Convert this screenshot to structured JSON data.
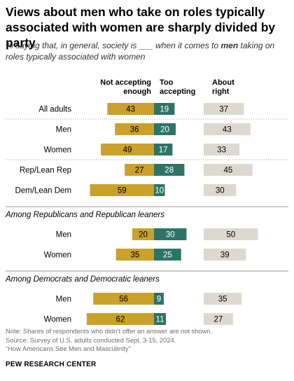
{
  "title": "Views about men who take on roles typically associated with women are sharply divided by party",
  "subtitle_before": "% saying that, in general, society is ___ when it comes to ",
  "subtitle_em": "men",
  "subtitle_after": " taking on roles typically associated with women",
  "footer": {
    "note": "Note: Shares of respondents who didn’t offer an answer are not shown.",
    "source": "Source: Survey of U.S. adults conducted Sept. 3-15, 2024.",
    "report": "“How Americans See Men and Masculinity”"
  },
  "brand": "PEW RESEARCH CENTER",
  "colors": {
    "not_accepting": "#c9a12b",
    "too_accepting": "#2e7466",
    "about_right": "#dcdad0",
    "divider": "#9a9a9a",
    "label_text": "#000000"
  },
  "chart_data": {
    "type": "bar",
    "orientation": "horizontal",
    "layout": "diverging",
    "series": [
      {
        "key": "not_accepting",
        "name": "Not accepting enough"
      },
      {
        "key": "too_accepting",
        "name": "Too accepting"
      },
      {
        "key": "about_right",
        "name": "About right"
      }
    ],
    "groups": [
      {
        "heading": "",
        "rows": [
          {
            "label": "All adults",
            "not_accepting": 43,
            "too_accepting": 19,
            "about_right": 37
          },
          {
            "label": "Men",
            "not_accepting": 36,
            "too_accepting": 20,
            "about_right": 43
          },
          {
            "label": "Women",
            "not_accepting": 49,
            "too_accepting": 17,
            "about_right": 33
          },
          {
            "label": "Rep/Lean Rep",
            "not_accepting": 27,
            "too_accepting": 28,
            "about_right": 45
          },
          {
            "label": "Dem/Lean Dem",
            "not_accepting": 59,
            "too_accepting": 10,
            "about_right": 30
          }
        ]
      },
      {
        "heading": "Among Republicans and Republican leaners",
        "rows": [
          {
            "label": "Men",
            "not_accepting": 20,
            "too_accepting": 30,
            "about_right": 50
          },
          {
            "label": "Women",
            "not_accepting": 35,
            "too_accepting": 25,
            "about_right": 39
          }
        ]
      },
      {
        "heading": "Among Democrats and Democratic leaners",
        "rows": [
          {
            "label": "Men",
            "not_accepting": 56,
            "too_accepting": 9,
            "about_right": 35
          },
          {
            "label": "Women",
            "not_accepting": 62,
            "too_accepting": 11,
            "about_right": 27
          }
        ]
      }
    ]
  }
}
